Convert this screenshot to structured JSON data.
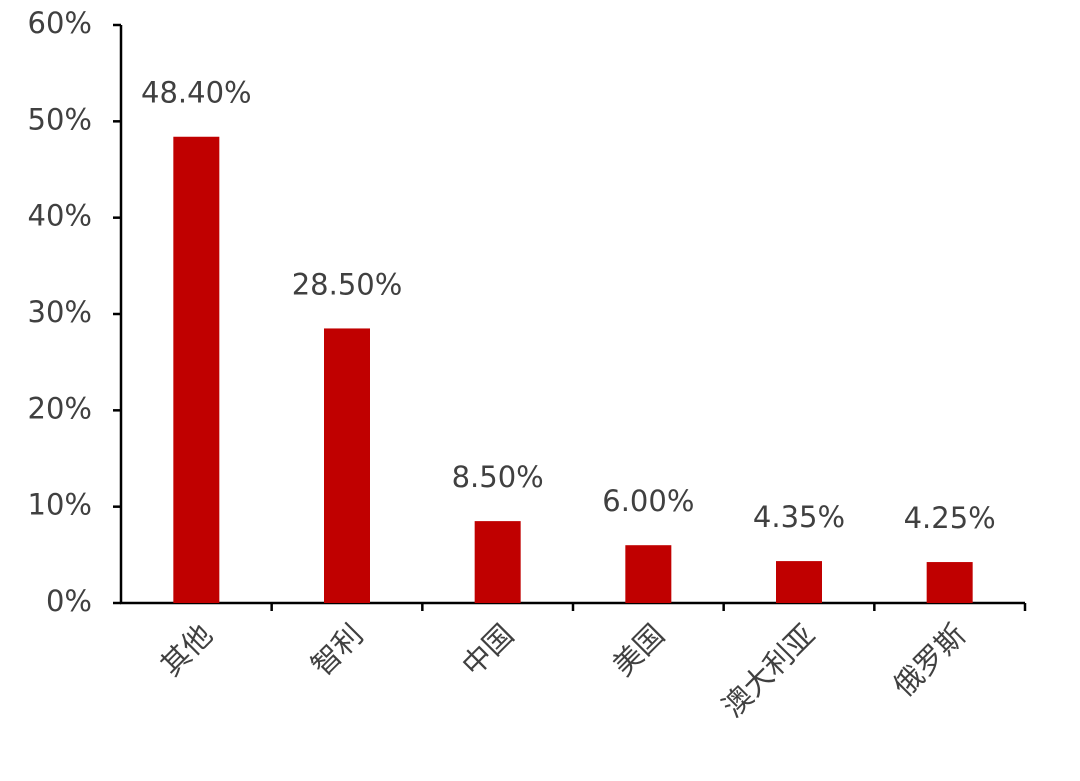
{
  "chart_data": {
    "type": "bar",
    "categories": [
      "其他",
      "智利",
      "中国",
      "美国",
      "澳大利亚",
      "俄罗斯"
    ],
    "values": [
      48.4,
      28.5,
      8.5,
      6.0,
      4.35,
      4.25
    ],
    "value_labels": [
      "48.40%",
      "28.50%",
      "8.50%",
      "6.00%",
      "4.35%",
      "4.25%"
    ],
    "color": "#c00000",
    "ylim": [
      0,
      60
    ],
    "yticks": [
      {
        "value": 0,
        "label": "0%"
      },
      {
        "value": 10,
        "label": "10%"
      },
      {
        "value": 20,
        "label": "20%"
      },
      {
        "value": 30,
        "label": "30%"
      },
      {
        "value": 40,
        "label": "40%"
      },
      {
        "value": 50,
        "label": "50%"
      },
      {
        "value": 60,
        "label": "60%"
      }
    ],
    "grid": false
  }
}
